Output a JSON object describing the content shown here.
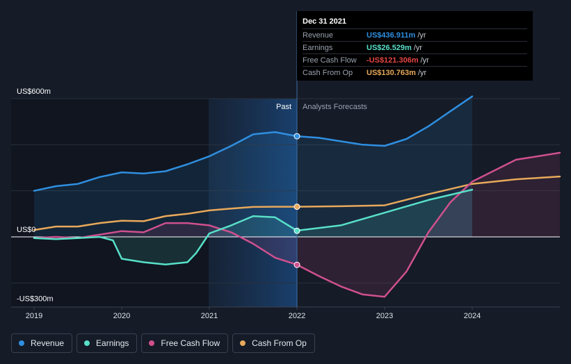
{
  "chart_data": {
    "type": "line",
    "title": "",
    "xlabel": "",
    "ylabel": "",
    "x_ticks": [
      "2019",
      "2020",
      "2021",
      "2022",
      "2023",
      "2024"
    ],
    "x_range": [
      2019.0,
      2025.0
    ],
    "ylim": [
      -300,
      600
    ],
    "y_labels": [
      {
        "value": 600,
        "text": "US$600m"
      },
      {
        "value": 0,
        "text": "US$0"
      },
      {
        "value": -300,
        "text": "-US$300m"
      }
    ],
    "divider_x": 2022.0,
    "past_label": "Past",
    "forecast_label": "Analysts Forecasts",
    "series": [
      {
        "name": "Revenue",
        "key": "revenue",
        "color": "#2f8fe0",
        "fill": true,
        "x": [
          2019.0,
          2019.25,
          2019.5,
          2019.75,
          2020.0,
          2020.25,
          2020.5,
          2020.75,
          2021.0,
          2021.25,
          2021.5,
          2021.75,
          2022.0,
          2022.25,
          2022.5,
          2022.75,
          2023.0,
          2023.25,
          2023.5,
          2023.75,
          2024.0
        ],
        "y": [
          200,
          220,
          230,
          260,
          280,
          275,
          285,
          315,
          350,
          395,
          445,
          455,
          437,
          430,
          415,
          400,
          395,
          425,
          480,
          545,
          610
        ]
      },
      {
        "name": "Earnings",
        "key": "earnings",
        "color": "#58e0c8",
        "fill": true,
        "x": [
          2019.0,
          2019.25,
          2019.5,
          2019.75,
          2019.9,
          2020.0,
          2020.25,
          2020.5,
          2020.75,
          2020.85,
          2021.0,
          2021.25,
          2021.5,
          2021.75,
          2022.0,
          2022.5,
          2023.0,
          2023.5,
          2024.0
        ],
        "y": [
          -5,
          -10,
          -5,
          0,
          -15,
          -95,
          -110,
          -120,
          -110,
          -70,
          15,
          50,
          90,
          85,
          27,
          50,
          105,
          160,
          205
        ]
      },
      {
        "name": "Free Cash Flow",
        "key": "fcf",
        "color": "#d0508e",
        "fill": true,
        "x": [
          2019.0,
          2019.25,
          2019.5,
          2019.75,
          2020.0,
          2020.25,
          2020.5,
          2020.75,
          2021.0,
          2021.25,
          2021.5,
          2021.75,
          2022.0,
          2022.25,
          2022.5,
          2022.75,
          2023.0,
          2023.25,
          2023.5,
          2023.75,
          2024.0,
          2024.5,
          2025.0
        ],
        "y": [
          -5,
          0,
          -5,
          10,
          25,
          20,
          60,
          60,
          50,
          20,
          -30,
          -90,
          -121,
          -170,
          -215,
          -250,
          -260,
          -150,
          20,
          150,
          240,
          335,
          365
        ]
      },
      {
        "name": "Cash From Op",
        "key": "cfo",
        "color": "#e8a95b",
        "fill": false,
        "x": [
          2019.0,
          2019.25,
          2019.5,
          2019.75,
          2020.0,
          2020.25,
          2020.5,
          2020.75,
          2021.0,
          2021.25,
          2021.5,
          2021.75,
          2022.0,
          2022.5,
          2023.0,
          2023.5,
          2024.0,
          2024.5,
          2025.0
        ],
        "y": [
          30,
          45,
          45,
          60,
          70,
          68,
          90,
          100,
          115,
          123,
          130,
          131,
          131,
          133,
          137,
          185,
          230,
          250,
          262
        ]
      }
    ],
    "marker_x": 2022.0,
    "markers": [
      {
        "key": "revenue",
        "value": 436.911
      },
      {
        "key": "earnings",
        "value": 26.529
      },
      {
        "key": "fcf",
        "value": -121.306
      },
      {
        "key": "cfo",
        "value": 130.763
      }
    ]
  },
  "tooltip": {
    "date": "Dec 31 2021",
    "rows": [
      {
        "label": "Revenue",
        "value": "US$436.911m",
        "unit": "/yr",
        "color": "#2f8fe0"
      },
      {
        "label": "Earnings",
        "value": "US$26.529m",
        "unit": "/yr",
        "color": "#58e0c8"
      },
      {
        "label": "Free Cash Flow",
        "value": "-US$121.306m",
        "unit": "/yr",
        "color": "#e84545"
      },
      {
        "label": "Cash From Op",
        "value": "US$130.763m",
        "unit": "/yr",
        "color": "#e8a95b"
      }
    ]
  },
  "legend": [
    {
      "label": "Revenue",
      "color": "#2f8fe0"
    },
    {
      "label": "Earnings",
      "color": "#58e0c8"
    },
    {
      "label": "Free Cash Flow",
      "color": "#d0508e"
    },
    {
      "label": "Cash From Op",
      "color": "#e8a95b"
    }
  ]
}
